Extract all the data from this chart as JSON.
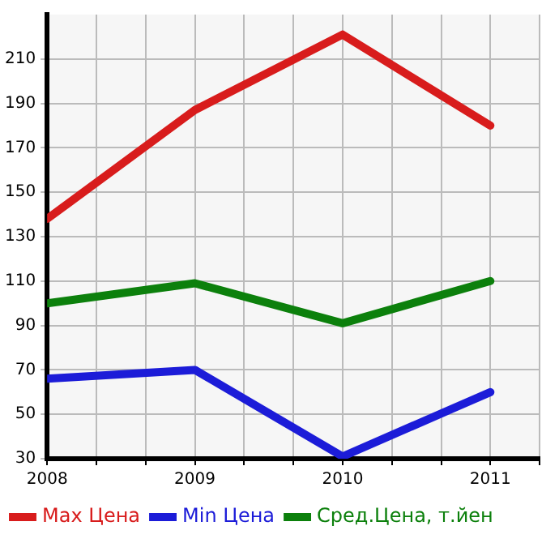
{
  "chart_data": {
    "type": "line",
    "x": [
      2008,
      2009,
      2010,
      2011
    ],
    "series": [
      {
        "name": "Max Цена",
        "color": "#d81c1c",
        "values": [
          138,
          187,
          221,
          180
        ]
      },
      {
        "name": "Min Цена",
        "color": "#1c1cd8",
        "values": [
          66,
          70,
          31,
          60
        ]
      },
      {
        "name": "Сред.Цена, т.йен",
        "color": "#0c800c",
        "values": [
          100,
          109,
          91,
          110
        ]
      }
    ],
    "xlim": [
      2008,
      2011.333
    ],
    "xticks": [
      2008,
      {
        "value": 2008.333,
        "label": null
      },
      {
        "value": 2008.667,
        "label": null
      },
      2009,
      {
        "value": 2009.333,
        "label": null
      },
      {
        "value": 2009.667,
        "label": null
      },
      2010,
      {
        "value": 2010.333,
        "label": null
      },
      {
        "value": 2010.667,
        "label": null
      },
      2011,
      {
        "value": 2011.333,
        "label": null
      }
    ],
    "ylim": [
      30,
      230
    ],
    "yticks": [
      30,
      50,
      70,
      90,
      110,
      130,
      150,
      170,
      190,
      210
    ],
    "grid": true,
    "legend": "bottom",
    "marker": "none",
    "line_style": "solid"
  }
}
